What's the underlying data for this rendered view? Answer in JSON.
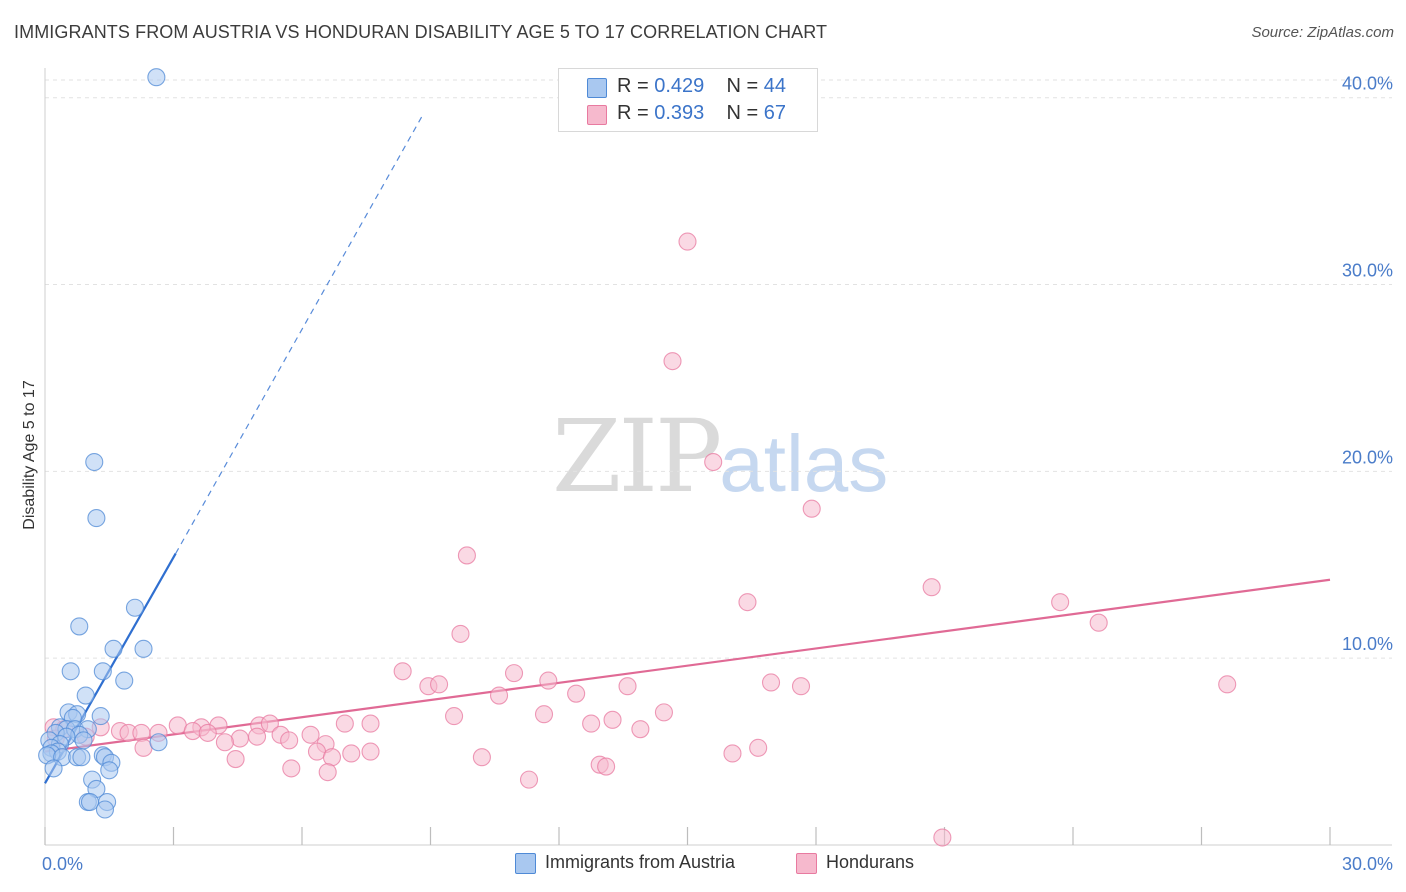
{
  "header": {
    "title": "IMMIGRANTS FROM AUSTRIA VS HONDURAN DISABILITY AGE 5 TO 17 CORRELATION CHART",
    "source": "Source: ZipAtlas.com"
  },
  "watermark": {
    "zip": "ZIP",
    "atlas": "atlas"
  },
  "legend": {
    "rows": [
      {
        "r_label": "R = ",
        "r_value": "0.429",
        "n_label": "N = ",
        "n_value": "44",
        "color": "#a9c8f0"
      },
      {
        "r_label": "R = ",
        "r_value": "0.393",
        "n_label": "N = ",
        "n_value": "67",
        "color": "#f6b9cd"
      }
    ]
  },
  "bottom_legend": {
    "items": [
      {
        "label": "Immigrants from Austria",
        "color": "#a9c8f0"
      },
      {
        "label": "Hondurans",
        "color": "#f6b9cd"
      }
    ]
  },
  "chart_data": {
    "type": "scatter",
    "title": "IMMIGRANTS FROM AUSTRIA VS HONDURAN DISABILITY AGE 5 TO 17 CORRELATION CHART",
    "xlabel": "",
    "ylabel": "Disability Age 5 to 17",
    "xlim": [
      0,
      30
    ],
    "ylim": [
      0,
      40
    ],
    "x_tick_labels": [
      {
        "value": 0,
        "label": "0.0%"
      },
      {
        "value": 30,
        "label": "30.0%"
      }
    ],
    "y_tick_labels": [
      {
        "value": 10,
        "label": "10.0%"
      },
      {
        "value": 20,
        "label": "20.0%"
      },
      {
        "value": 30,
        "label": "30.0%"
      },
      {
        "value": 40,
        "label": "40.0%"
      }
    ],
    "grid": true,
    "series": [
      {
        "name": "Immigrants from Austria",
        "color": "#4f8ad6",
        "fill": "#a9c8f0",
        "trend": {
          "x": [
            0,
            3.05
          ],
          "y": [
            3.3,
            15.6
          ],
          "dashed_to": [
            8.8,
            39.0
          ],
          "color": "#2f6fd0"
        },
        "points": [
          [
            2.6,
            41.1
          ],
          [
            1.15,
            20.5
          ],
          [
            1.2,
            17.5
          ],
          [
            2.1,
            12.7
          ],
          [
            0.8,
            11.7
          ],
          [
            2.3,
            10.5
          ],
          [
            1.6,
            10.5
          ],
          [
            0.6,
            9.3
          ],
          [
            1.35,
            9.3
          ],
          [
            1.85,
            8.8
          ],
          [
            0.95,
            8.0
          ],
          [
            0.55,
            7.1
          ],
          [
            0.75,
            7.0
          ],
          [
            1.3,
            6.9
          ],
          [
            0.65,
            6.8
          ],
          [
            0.35,
            6.3
          ],
          [
            0.5,
            6.2
          ],
          [
            0.7,
            6.2
          ],
          [
            1.0,
            6.2
          ],
          [
            0.25,
            6.0
          ],
          [
            0.8,
            5.9
          ],
          [
            0.5,
            5.8
          ],
          [
            0.1,
            5.6
          ],
          [
            0.35,
            5.4
          ],
          [
            0.15,
            5.2
          ],
          [
            0.3,
            5.0
          ],
          [
            0.15,
            4.9
          ],
          [
            0.05,
            4.8
          ],
          [
            0.4,
            4.7
          ],
          [
            0.75,
            4.7
          ],
          [
            0.85,
            4.7
          ],
          [
            1.35,
            4.8
          ],
          [
            1.4,
            4.7
          ],
          [
            2.65,
            5.5
          ],
          [
            1.55,
            4.4
          ],
          [
            0.2,
            4.1
          ],
          [
            1.5,
            4.0
          ],
          [
            1.1,
            3.5
          ],
          [
            1.2,
            3.0
          ],
          [
            1.0,
            2.3
          ],
          [
            1.05,
            2.3
          ],
          [
            1.45,
            2.3
          ],
          [
            1.4,
            1.9
          ],
          [
            0.9,
            5.6
          ]
        ]
      },
      {
        "name": "Hondurans",
        "color": "#e87aa0",
        "fill": "#f6b9cd",
        "trend": {
          "x": [
            0,
            30
          ],
          "y": [
            5.0,
            14.2
          ],
          "color": "#e06a95"
        },
        "points": [
          [
            15.0,
            32.3
          ],
          [
            14.65,
            25.9
          ],
          [
            15.6,
            20.5
          ],
          [
            17.9,
            18.0
          ],
          [
            9.85,
            15.5
          ],
          [
            20.7,
            13.8
          ],
          [
            16.4,
            13.0
          ],
          [
            23.7,
            13.0
          ],
          [
            24.6,
            11.9
          ],
          [
            9.7,
            11.3
          ],
          [
            8.35,
            9.3
          ],
          [
            10.95,
            9.2
          ],
          [
            8.95,
            8.5
          ],
          [
            9.2,
            8.6
          ],
          [
            11.75,
            8.8
          ],
          [
            13.6,
            8.5
          ],
          [
            16.95,
            8.7
          ],
          [
            17.65,
            8.5
          ],
          [
            27.6,
            8.6
          ],
          [
            10.6,
            8.0
          ],
          [
            12.4,
            8.1
          ],
          [
            14.45,
            7.1
          ],
          [
            11.65,
            7.0
          ],
          [
            9.55,
            6.9
          ],
          [
            13.25,
            6.7
          ],
          [
            12.75,
            6.5
          ],
          [
            13.9,
            6.2
          ],
          [
            7.0,
            6.5
          ],
          [
            7.6,
            6.5
          ],
          [
            5.0,
            6.4
          ],
          [
            5.25,
            6.5
          ],
          [
            3.1,
            6.4
          ],
          [
            3.65,
            6.3
          ],
          [
            4.05,
            6.4
          ],
          [
            3.45,
            6.1
          ],
          [
            3.8,
            6.0
          ],
          [
            1.3,
            6.3
          ],
          [
            1.75,
            6.1
          ],
          [
            0.2,
            6.3
          ],
          [
            0.45,
            6.2
          ],
          [
            1.95,
            6.0
          ],
          [
            2.25,
            6.0
          ],
          [
            2.65,
            6.0
          ],
          [
            0.95,
            5.8
          ],
          [
            0.25,
            5.7
          ],
          [
            4.95,
            5.8
          ],
          [
            5.5,
            5.9
          ],
          [
            4.55,
            5.7
          ],
          [
            4.2,
            5.5
          ],
          [
            6.2,
            5.9
          ],
          [
            6.55,
            5.4
          ],
          [
            5.7,
            5.6
          ],
          [
            2.3,
            5.2
          ],
          [
            6.35,
            5.0
          ],
          [
            7.15,
            4.9
          ],
          [
            7.6,
            5.0
          ],
          [
            6.7,
            4.7
          ],
          [
            4.45,
            4.6
          ],
          [
            10.2,
            4.7
          ],
          [
            16.05,
            4.9
          ],
          [
            16.65,
            5.2
          ],
          [
            5.75,
            4.1
          ],
          [
            6.6,
            3.9
          ],
          [
            12.95,
            4.3
          ],
          [
            13.1,
            4.2
          ],
          [
            11.3,
            3.5
          ],
          [
            20.95,
            0.4
          ]
        ]
      }
    ]
  }
}
